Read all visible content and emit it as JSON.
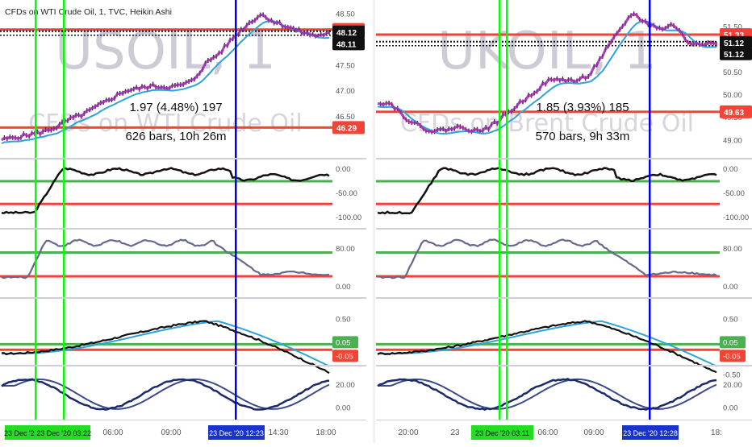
{
  "colors": {
    "bg": "#ffffff",
    "panel_bg": "#e8e4f7",
    "divider": "#d0cdd6",
    "red": "#f44336",
    "green": "#4caf50",
    "lime": "#00ff00",
    "blue": "#0000ee",
    "magenta": "#9c27b0",
    "cyan": "#2fa3d9",
    "black": "#111111",
    "gray": "#666a8a",
    "navy": "#1b2a6b",
    "candle_red": "#8b1a4a"
  },
  "chart_data": [
    {
      "name": "usoil",
      "type": "line",
      "header": "CFDs on WTI Crude Oil, 1, TVC, Heikin Ashi",
      "watermark": "USOIL, 1",
      "watermark_sub": "CFDs on WTI Crude Oil",
      "measure_line1": "1.97 (4.48%) 197",
      "measure_line2": "626 bars, 10h 26m",
      "price_scale": [
        "48.50",
        "48.00",
        "47.50",
        "47.00",
        "46.50"
      ],
      "price_badges": [
        {
          "text": "48.20",
          "color": "#f44336"
        },
        {
          "text": "48.12",
          "color": "#111111"
        },
        {
          "text": "48.11",
          "color": "#111111"
        },
        {
          "text": "46.29",
          "color": "#f44336"
        }
      ],
      "ylim": [
        45.95,
        48.65
      ],
      "series": [
        {
          "name": "",
          "values": [
            46.05,
            46.1,
            46.15,
            46.2,
            46.3,
            46.45,
            46.55,
            46.7,
            46.85,
            47.0,
            47.05,
            47.1,
            47.08,
            47.1,
            47.2,
            47.55,
            47.75,
            48.05,
            48.3,
            48.5,
            48.35,
            48.25,
            48.15,
            48.08,
            48.12
          ]
        }
      ],
      "h_lines": [
        48.2,
        46.29
      ],
      "osc_scales": [
        {
          "ticks": [
            "0.00",
            "-50.00",
            "-100.00"
          ],
          "badges": []
        },
        {
          "ticks": [
            "80.00",
            "0.00"
          ],
          "badges": []
        },
        {
          "ticks": [
            "0.50",
            "0.05",
            "-0.05"
          ],
          "badges": [
            {
              "text": "0.05",
              "color": "#4caf50"
            },
            {
              "text": "-0.05",
              "color": "#f44336"
            }
          ]
        },
        {
          "ticks": [
            "20.00",
            "0.00"
          ],
          "badges": []
        }
      ],
      "time_labels": [
        "06:00",
        "09:00",
        "14:30",
        "18:00"
      ],
      "time_badges": [
        {
          "text": "23 Dec '2 23 Dec '20 03:22",
          "color": "#00cc00"
        },
        {
          "text": "23 Dec '20   12:23",
          "color": "#1a33cc"
        }
      ]
    },
    {
      "name": "ukoil",
      "type": "line",
      "header": "",
      "watermark": "UKOIL, 1",
      "watermark_sub": "CFDs on Brent Crude Oil",
      "measure_line1": "1.85 (3.93%) 185",
      "measure_line2": "570 bars, 9h 33m",
      "price_scale": [
        "51.50",
        "51.00",
        "50.50",
        "50.00",
        "49.50",
        "49.00"
      ],
      "price_badges": [
        {
          "text": "51.33",
          "color": "#f44336"
        },
        {
          "text": "51.12",
          "color": "#111111"
        },
        {
          "text": "51.12",
          "color": "#111111"
        },
        {
          "text": "49.63",
          "color": "#f44336"
        }
      ],
      "ylim": [
        48.9,
        51.95
      ],
      "series": [
        {
          "name": "",
          "values": [
            49.85,
            49.8,
            49.5,
            49.3,
            49.2,
            49.25,
            49.3,
            49.2,
            49.3,
            49.55,
            49.8,
            50.05,
            50.3,
            50.35,
            50.3,
            50.45,
            50.9,
            51.35,
            51.8,
            51.6,
            51.45,
            51.55,
            51.15,
            51.15,
            51.12
          ]
        }
      ],
      "h_lines": [
        51.33,
        49.63
      ],
      "osc_scales": [
        {
          "ticks": [
            "0.00",
            "-50.00",
            "-100.00"
          ],
          "badges": []
        },
        {
          "ticks": [
            "80.00",
            "0.00"
          ],
          "badges": []
        },
        {
          "ticks": [
            "0.50",
            "0.05",
            "-0.05",
            "-0.50"
          ],
          "badges": [
            {
              "text": "0.05",
              "color": "#4caf50"
            },
            {
              "text": "-0.05",
              "color": "#f44336"
            }
          ]
        },
        {
          "ticks": [
            "20.00",
            "0.00"
          ],
          "badges": []
        }
      ],
      "time_labels": [
        "20:00",
        "23",
        "06:00",
        "09:00",
        "18:"
      ],
      "time_badges": [
        {
          "text": "23 Dec '20 03:11",
          "color": "#00cc00"
        },
        {
          "text": "23 Dec '20   12:28",
          "color": "#1a33cc"
        }
      ]
    }
  ]
}
